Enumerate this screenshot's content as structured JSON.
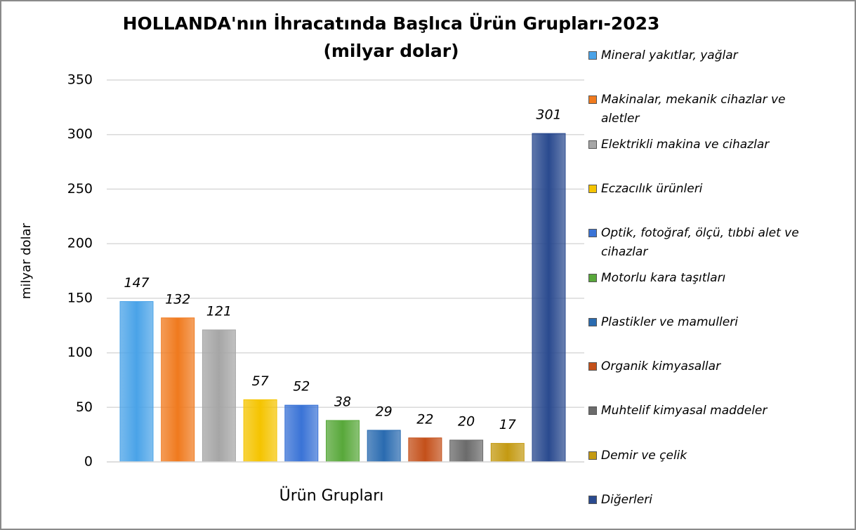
{
  "chart_data": {
    "type": "bar",
    "title": "HOLLANDA'nın İhracatında Başlıca Ürün Grupları-2023",
    "subtitle": "(milyar dolar)",
    "y_label": "milyar dolar",
    "categories": [
      "Ürün Grupları"
    ],
    "series": [
      {
        "name": "Mineral yakıtlar, yağlar",
        "color": "#4aa3e8",
        "values": [
          147
        ]
      },
      {
        "name": "Makinalar, mekanik cihazlar ve aletler",
        "color": "#f07a1e",
        "values": [
          132
        ]
      },
      {
        "name": "Elektrikli makina ve cihazlar",
        "color": "#a6a6a6",
        "values": [
          121
        ]
      },
      {
        "name": "Eczacılık ürünleri",
        "color": "#f5c400",
        "values": [
          57
        ]
      },
      {
        "name": "Optik, fotoğraf, ölçü, tıbbi alet ve cihazlar",
        "color": "#3a73d6",
        "values": [
          52
        ]
      },
      {
        "name": "Motorlu kara taşıtları",
        "color": "#58a83a",
        "values": [
          38
        ]
      },
      {
        "name": "Plastikler ve mamulleri",
        "color": "#2a6bb0",
        "values": [
          29
        ]
      },
      {
        "name": "Organik kimyasallar",
        "color": "#c4501a",
        "values": [
          22
        ]
      },
      {
        "name": "Muhtelif kimyasal maddeler",
        "color": "#6b6b6b",
        "values": [
          20
        ]
      },
      {
        "name": "Demir ve çelik",
        "color": "#c49a12",
        "values": [
          17
        ]
      },
      {
        "name": "Diğerleri",
        "color": "#2a4a8f",
        "values": [
          301
        ]
      }
    ],
    "ylim": [
      0,
      350
    ],
    "yticks": [
      0,
      50,
      100,
      150,
      200,
      250,
      300,
      350
    ],
    "grid": true,
    "legend": "right"
  }
}
